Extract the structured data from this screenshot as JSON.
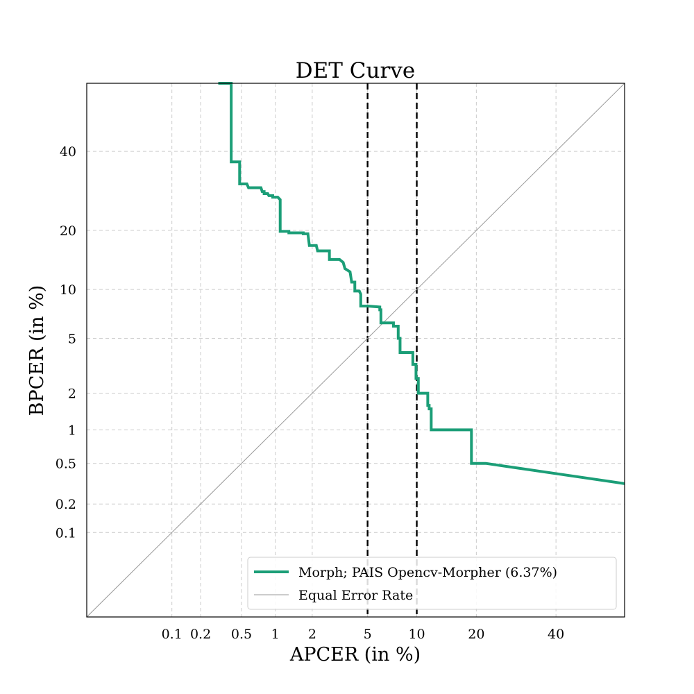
{
  "chart_data": {
    "type": "line",
    "title": "DET Curve",
    "xlabel": "APCER (in %)",
    "ylabel": "BPCER (in %)",
    "scale": "normal-deviate (probit)",
    "xlim": [
      0.01,
      60
    ],
    "ylim": [
      0.01,
      60
    ],
    "grid": true,
    "x_ticks": [
      0.1,
      0.2,
      0.5,
      1,
      2,
      5,
      10,
      20,
      40
    ],
    "x_tick_labels": [
      "0.1",
      "0.2",
      "0.5",
      "1",
      "2",
      "5",
      "10",
      "20",
      "40"
    ],
    "y_ticks": [
      0.1,
      0.2,
      0.5,
      1,
      2,
      5,
      10,
      20,
      40
    ],
    "y_tick_labels": [
      "0.1",
      "0.2",
      "0.5",
      "1",
      "2",
      "5",
      "10",
      "20",
      "40"
    ],
    "reference_lines": [
      {
        "axis": "x",
        "value": 5,
        "style": "dashed",
        "color": "#000000"
      },
      {
        "axis": "x",
        "value": 10,
        "style": "dashed",
        "color": "#000000"
      }
    ],
    "legend_position": "lower-right",
    "series": [
      {
        "name": "Morph; PAIS Opencv-Morpher (6.37%)",
        "color": "#1b9e77",
        "style": "solid-thick",
        "x": [
          0.3,
          0.4,
          0.4,
          0.48,
          0.48,
          0.56,
          0.58,
          0.75,
          0.77,
          0.8,
          0.8,
          0.86,
          0.88,
          0.95,
          0.95,
          1.05,
          1.1,
          1.1,
          1.3,
          1.3,
          1.7,
          1.7,
          1.85,
          1.9,
          2.15,
          2.2,
          2.7,
          2.7,
          3.2,
          3.4,
          3.5,
          3.8,
          3.9,
          4.1,
          4.1,
          4.4,
          4.5,
          4.5,
          5.0,
          6.0,
          6.0,
          6.1,
          6.1,
          7.3,
          7.3,
          7.8,
          7.8,
          8.0,
          8.0,
          9.5,
          9.5,
          9.9,
          9.9,
          10.2,
          10.2,
          11.5,
          11.5,
          11.7,
          11.7,
          12.0,
          12.0,
          19.0,
          19.0,
          22.0,
          30.0,
          40.0,
          60.0
        ],
        "y": [
          60,
          60,
          37,
          37,
          31,
          31,
          30,
          30,
          29,
          29,
          28.5,
          28.5,
          28,
          28,
          27.6,
          27.6,
          27,
          19.8,
          19.8,
          19.5,
          19.5,
          19.3,
          19.3,
          17,
          17,
          16,
          16,
          14.5,
          14.5,
          14,
          13,
          12.5,
          11,
          11,
          9.8,
          9.8,
          9.4,
          8.0,
          8.0,
          7.9,
          7.6,
          7.6,
          6.3,
          6.3,
          6.0,
          6.0,
          5.0,
          5.0,
          4.0,
          4.0,
          3.3,
          3.3,
          2.6,
          2.6,
          2.0,
          2.0,
          1.6,
          1.6,
          1.5,
          1.5,
          1.0,
          1.0,
          0.5,
          0.5,
          0.45,
          0.4,
          0.32
        ]
      },
      {
        "name": "Equal Error Rate",
        "color": "#999999",
        "style": "solid-thin",
        "x": [
          0.01,
          60
        ],
        "y": [
          0.01,
          60
        ]
      }
    ]
  }
}
